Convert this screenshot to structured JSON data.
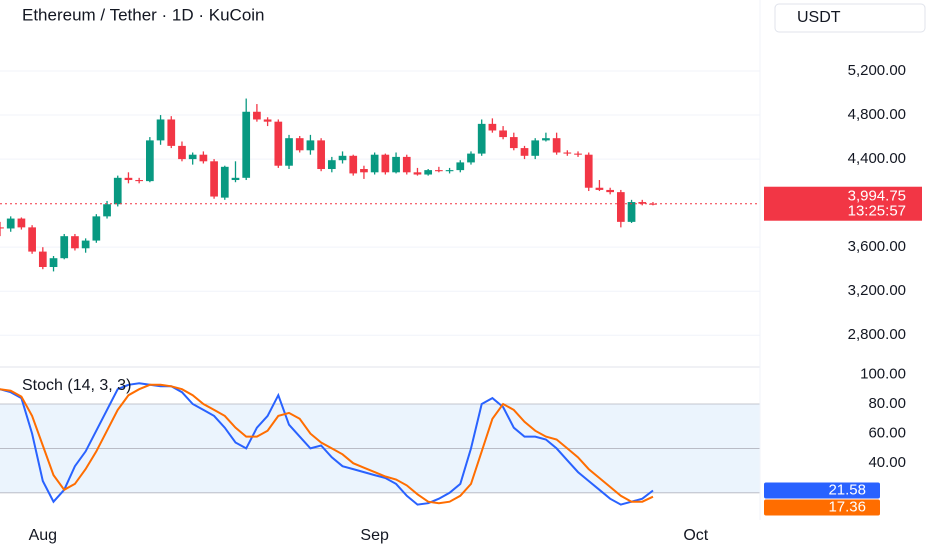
{
  "chart_data": [
    {
      "type": "candlestick",
      "title": "Ethereum / Tether · 1D · KuCoin",
      "currency": "USDT",
      "open": [
        3780,
        3770,
        3860,
        3780,
        3560,
        3420,
        3500,
        3700,
        3590,
        3660,
        3880,
        3990,
        4230,
        4210,
        4200,
        4570,
        4760,
        4520,
        4400,
        4440,
        4380,
        4050,
        4210,
        4230,
        4830,
        4760,
        4740,
        4340,
        4590,
        4480,
        4570,
        4310,
        4390,
        4430,
        4310,
        4280,
        4440,
        4280,
        4420,
        4280,
        4260,
        4300,
        4290,
        4300,
        4370,
        4450,
        4720,
        4660,
        4600,
        4500,
        4430,
        4570,
        4590,
        4460,
        4450,
        4440,
        4140,
        4120,
        4100,
        3830,
        4010,
        3995
      ],
      "high": [
        3830,
        3880,
        3870,
        3800,
        3600,
        3520,
        3720,
        3720,
        3680,
        3900,
        4020,
        4250,
        4280,
        4230,
        4600,
        4800,
        4790,
        4560,
        4460,
        4470,
        4400,
        4340,
        4380,
        4950,
        4900,
        4780,
        4760,
        4620,
        4610,
        4620,
        4590,
        4420,
        4470,
        4440,
        4340,
        4460,
        4450,
        4460,
        4440,
        4320,
        4310,
        4330,
        4320,
        4390,
        4470,
        4760,
        4770,
        4700,
        4640,
        4520,
        4590,
        4640,
        4640,
        4480,
        4470,
        4460,
        4210,
        4140,
        4120,
        4030,
        4030,
        4010
      ],
      "low": [
        3700,
        3740,
        3760,
        3540,
        3400,
        3380,
        3490,
        3570,
        3550,
        3640,
        3860,
        3970,
        4180,
        4180,
        4190,
        4530,
        4500,
        4380,
        4350,
        4360,
        4040,
        4030,
        4190,
        4210,
        4740,
        4700,
        4320,
        4310,
        4460,
        4440,
        4290,
        4280,
        4360,
        4250,
        4220,
        4260,
        4260,
        4270,
        4260,
        4250,
        4250,
        4280,
        4270,
        4280,
        4350,
        4430,
        4640,
        4580,
        4480,
        4400,
        4400,
        4560,
        4440,
        4430,
        4420,
        4110,
        4110,
        4080,
        3780,
        3820,
        3980,
        3980
      ],
      "close": [
        3770,
        3860,
        3780,
        3560,
        3420,
        3500,
        3700,
        3590,
        3660,
        3880,
        3990,
        4230,
        4210,
        4200,
        4570,
        4760,
        4520,
        4400,
        4440,
        4380,
        4060,
        4330,
        4230,
        4830,
        4760,
        4740,
        4340,
        4590,
        4480,
        4570,
        4310,
        4390,
        4430,
        4270,
        4280,
        4440,
        4280,
        4420,
        4280,
        4260,
        4300,
        4290,
        4300,
        4370,
        4450,
        4720,
        4660,
        4600,
        4500,
        4430,
        4570,
        4590,
        4460,
        4450,
        4440,
        4140,
        4120,
        4100,
        3830,
        4010,
        3995,
        3994.75
      ],
      "last_price": {
        "value": 3994.75,
        "label": "3,994.75"
      },
      "countdown": "13:25:57",
      "up_color": "#089981",
      "down_color": "#f23645",
      "last_color": "#f23645",
      "xlim": [
        0,
        71
      ],
      "xticks": [
        {
          "value": 4,
          "label": "Aug"
        },
        {
          "value": 35,
          "label": "Sep"
        },
        {
          "value": 65,
          "label": "Oct"
        }
      ],
      "ylim": [
        2530,
        5845
      ],
      "yticks": [
        {
          "value": 2800,
          "label": "2,800.00"
        },
        {
          "value": 3200,
          "label": "3,200.00"
        },
        {
          "value": 3600,
          "label": "3,600.00"
        },
        {
          "value": 4400,
          "label": "4,400.00"
        },
        {
          "value": 4800,
          "label": "4,800.00"
        },
        {
          "value": 5200,
          "label": "5,200.00"
        }
      ],
      "grid": true
    },
    {
      "type": "line",
      "title": "Stoch (14, 3, 3)",
      "series": [
        {
          "color": "#2962ff",
          "values": [
            90,
            88,
            84,
            60,
            28,
            14,
            22,
            38,
            48,
            62,
            76,
            90,
            93,
            94,
            93,
            92,
            92,
            88,
            80,
            76,
            72,
            64,
            54,
            50,
            64,
            72,
            86,
            66,
            58,
            50,
            52,
            44,
            38,
            36,
            34,
            32,
            30,
            26,
            18,
            12,
            13,
            16,
            20,
            26,
            50,
            80,
            84,
            78,
            64,
            58,
            58,
            56,
            50,
            42,
            34,
            28,
            22,
            16,
            12,
            14,
            16,
            21.58
          ]
        },
        {
          "color": "#ff6d00",
          "values": [
            90,
            89,
            85,
            72,
            52,
            32,
            22,
            26,
            36,
            48,
            62,
            76,
            86,
            90,
            93,
            93,
            92,
            90,
            86,
            80,
            76,
            72,
            64,
            58,
            58,
            62,
            72,
            74,
            70,
            60,
            54,
            50,
            46,
            40,
            37,
            34,
            31,
            29,
            25,
            19,
            14,
            13,
            14,
            18,
            26,
            48,
            70,
            80,
            76,
            68,
            62,
            58,
            56,
            50,
            44,
            36,
            30,
            24,
            18,
            14,
            14,
            17.36
          ]
        }
      ],
      "levels": [
        80,
        50,
        20
      ],
      "band_color": "#e3f0fc",
      "ylim": [
        5,
        103
      ],
      "yticks": [
        {
          "value": 40,
          "label": "40.00"
        },
        {
          "value": 60,
          "label": "60.00"
        },
        {
          "value": 80,
          "label": "80.00"
        },
        {
          "value": 100,
          "label": "100.00"
        }
      ]
    }
  ]
}
